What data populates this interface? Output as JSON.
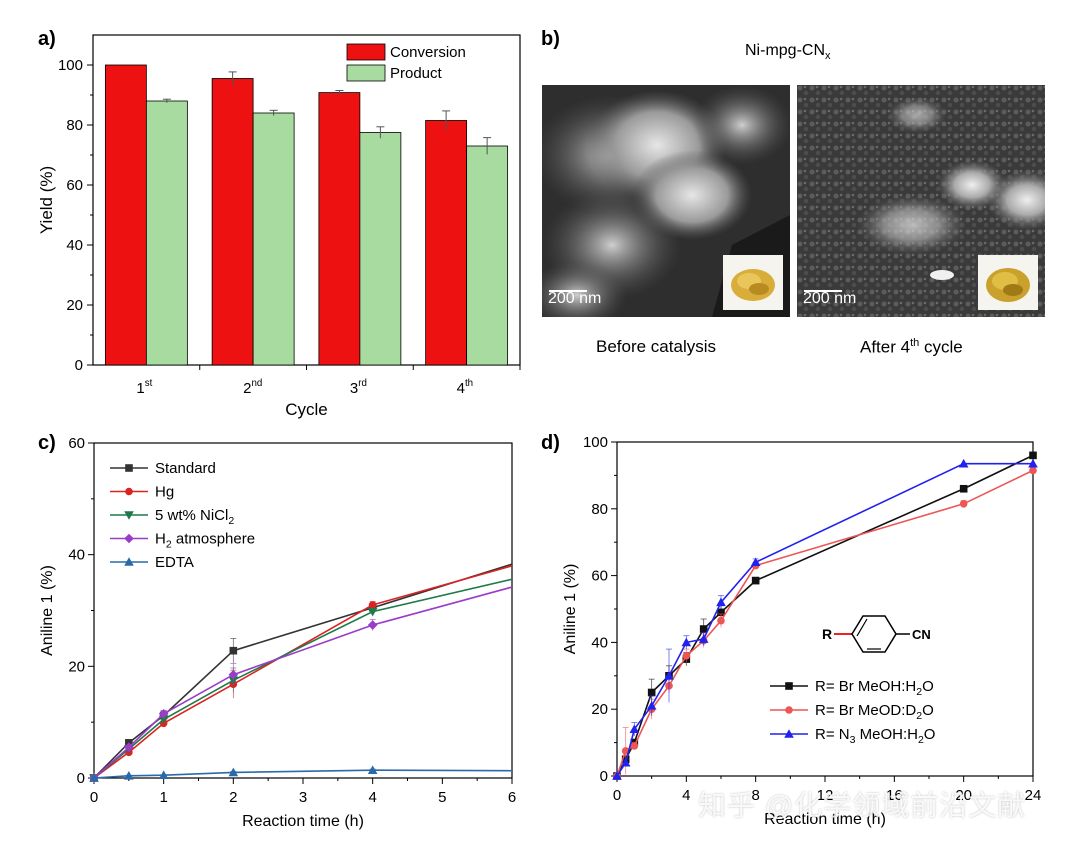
{
  "panel_labels": {
    "a": "a)",
    "b": "b)",
    "c": "c)",
    "d": "d)"
  },
  "panel_b": {
    "title_main": "Ni-mpg-CN",
    "title_sub": "x",
    "before_caption": "Before catalysis",
    "after_caption_pre": "After 4",
    "after_caption_sup": "th",
    "after_caption_post": " cycle",
    "scalebar_left": "200 nm",
    "scalebar_right": "200 nm"
  },
  "watermark": "知乎 @化学领域前沿文献",
  "colors": {
    "conversion": "#ee1111",
    "product": "#a8dba0",
    "standard": "#333333",
    "hg": "#dd2222",
    "nicl2": "#1e7a4a",
    "h2": "#9a3cc8",
    "edta": "#2a6aa8",
    "br_h2o": "#111111",
    "br_d2o": "#ee5555",
    "n3": "#2222ee"
  },
  "chart_data": [
    {
      "id": "a",
      "type": "bar",
      "xlabel": "Cycle",
      "ylabel": "Yield (%)",
      "ylim": [
        0,
        110
      ],
      "yticks": [
        0,
        20,
        40,
        60,
        80,
        100
      ],
      "categories": [
        {
          "num": "1",
          "sup": "st"
        },
        {
          "num": "2",
          "sup": "nd"
        },
        {
          "num": "3",
          "sup": "rd"
        },
        {
          "num": "4",
          "sup": "th"
        }
      ],
      "series": [
        {
          "name": "Conversion",
          "values": [
            100,
            95.5,
            90.8,
            81.5
          ],
          "errors": [
            0,
            2.2,
            0.7,
            3.2
          ]
        },
        {
          "name": "Product",
          "values": [
            88,
            84,
            77.5,
            73
          ],
          "errors": [
            0.6,
            0.9,
            1.9,
            2.8
          ]
        }
      ],
      "legend": "top-right"
    },
    {
      "id": "c",
      "type": "line",
      "xlabel": "Reaction time (h)",
      "ylabel": "Aniline 1 (%)",
      "xlim": [
        0,
        6
      ],
      "ylim": [
        0,
        60
      ],
      "xticks": [
        0,
        1,
        2,
        3,
        4,
        5,
        6
      ],
      "yticks": [
        0,
        20,
        40,
        60
      ],
      "series": [
        {
          "name": "Standard",
          "label_main": "Standard",
          "label_sub": "",
          "label_post": "",
          "marker": "square",
          "x": [
            0,
            0.5,
            1,
            2,
            4,
            6
          ],
          "y": [
            0,
            6.3,
            11.2,
            22.8,
            30.5,
            38.3
          ],
          "errors": [
            0,
            0.5,
            0.8,
            2.2,
            0.8,
            0
          ],
          "showMarkers": [
            1,
            1,
            1,
            1,
            1,
            0
          ]
        },
        {
          "name": "Hg",
          "label_main": "Hg",
          "label_sub": "",
          "label_post": "",
          "marker": "circle",
          "x": [
            0,
            0.5,
            1,
            2,
            4,
            6
          ],
          "y": [
            0,
            4.6,
            9.8,
            16.8,
            31,
            38
          ],
          "errors": [
            0,
            0.4,
            0.6,
            2.5,
            0.6,
            0
          ],
          "showMarkers": [
            1,
            1,
            1,
            1,
            1,
            0
          ]
        },
        {
          "name": "5 wt% NiCl2",
          "label_main": "5 wt% NiCl",
          "label_sub": "2",
          "label_post": "",
          "marker": "triangle-down",
          "x": [
            0,
            0.5,
            1,
            2,
            4,
            6
          ],
          "y": [
            0,
            5.2,
            10.5,
            17.5,
            29.8,
            35.6
          ],
          "errors": [
            0,
            0.4,
            0.6,
            2.2,
            0.6,
            0
          ],
          "showMarkers": [
            1,
            1,
            1,
            1,
            1,
            0
          ]
        },
        {
          "name": "H2 atmosphere",
          "label_main": "H",
          "label_sub": "2",
          "label_post": " atmosphere",
          "marker": "diamond",
          "x": [
            0,
            0.5,
            1,
            2,
            4,
            6
          ],
          "y": [
            0,
            5.5,
            11.5,
            18.5,
            27.4,
            34.2
          ],
          "errors": [
            0,
            0.4,
            0.6,
            2.0,
            1.0,
            0
          ],
          "showMarkers": [
            1,
            1,
            1,
            1,
            1,
            0
          ]
        },
        {
          "name": "EDTA",
          "label_main": "EDTA",
          "label_sub": "",
          "label_post": "",
          "marker": "triangle-up",
          "x": [
            0,
            0.5,
            1,
            2,
            4,
            6
          ],
          "y": [
            0,
            0.4,
            0.5,
            1.0,
            1.4,
            1.3
          ],
          "errors": [
            0,
            0.1,
            0.1,
            0.2,
            0.2,
            0
          ],
          "showMarkers": [
            1,
            1,
            1,
            1,
            1,
            0
          ]
        }
      ],
      "legend": "top-left"
    },
    {
      "id": "d",
      "type": "line",
      "xlabel": "Reaction time (h)",
      "ylabel": "Aniline 1 (%)",
      "xlim": [
        0,
        24
      ],
      "ylim": [
        0,
        100
      ],
      "xticks": [
        0,
        4,
        8,
        12,
        16,
        20,
        24
      ],
      "yticks": [
        0,
        20,
        40,
        60,
        80,
        100
      ],
      "structure_label": "R",
      "structure_group": "CN",
      "series": [
        {
          "name": "R= Br MeOH:H2O",
          "parts": [
            "R= Br MeOH:H",
            "2",
            "O"
          ],
          "marker": "square",
          "x": [
            0,
            0.5,
            1,
            2,
            3,
            4,
            5,
            6,
            8,
            20,
            24
          ],
          "y": [
            0,
            5,
            10,
            25,
            30,
            35,
            44,
            49,
            58.5,
            86,
            96
          ],
          "errors": [
            0,
            1,
            1,
            4,
            3,
            2,
            3,
            2,
            1,
            0,
            0
          ]
        },
        {
          "name": "R= Br MeOD:D2O",
          "parts": [
            "R= Br MeOD:D",
            "2",
            "O"
          ],
          "marker": "circle",
          "x": [
            0,
            0.5,
            1,
            2,
            3,
            4,
            5,
            6,
            8,
            20,
            24
          ],
          "y": [
            0,
            7.5,
            9,
            20,
            27,
            36,
            40.5,
            46.5,
            63,
            81.5,
            91.5
          ],
          "errors": [
            0,
            7,
            1,
            3,
            2,
            2,
            2,
            2,
            1,
            1,
            1
          ]
        },
        {
          "name": "R= N3 MeOH:H2O",
          "parts": [
            "R= N",
            "3",
            " MeOH:H",
            "2",
            "O"
          ],
          "marker": "triangle-up",
          "x": [
            0,
            0.5,
            1,
            2,
            3,
            4,
            5,
            6,
            8,
            20,
            24
          ],
          "y": [
            0,
            4,
            14,
            21,
            30,
            40,
            41,
            52,
            64,
            93.5,
            93.5
          ],
          "errors": [
            0,
            1,
            2,
            3,
            8,
            2,
            2,
            2,
            1,
            0,
            0
          ]
        }
      ],
      "legend": "bottom-right"
    }
  ]
}
